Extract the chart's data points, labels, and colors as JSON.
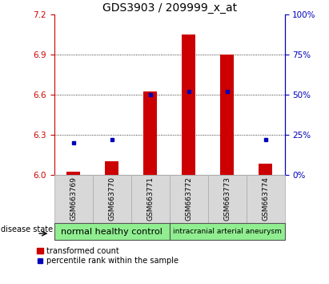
{
  "title": "GDS3903 / 209999_x_at",
  "samples": [
    "GSM663769",
    "GSM663770",
    "GSM663771",
    "GSM663772",
    "GSM663773",
    "GSM663774"
  ],
  "transformed_count": [
    6.02,
    6.1,
    6.62,
    7.05,
    6.9,
    6.08
  ],
  "percentile_rank": [
    20,
    22,
    50,
    52,
    52,
    22
  ],
  "ylim_left": [
    6.0,
    7.2
  ],
  "ylim_right": [
    0,
    100
  ],
  "yticks_left": [
    6.0,
    6.3,
    6.6,
    6.9,
    7.2
  ],
  "yticks_right": [
    0,
    25,
    50,
    75,
    100
  ],
  "bar_color": "#CC0000",
  "point_color": "#0000BB",
  "bar_width": 0.35,
  "sample_box_color": "#d8d8d8",
  "group_color": "#90EE90",
  "plot_bg": "#ffffff",
  "left_axis_color": "#CC0000",
  "right_axis_color": "#0000BB",
  "title_fontsize": 10,
  "tick_fontsize": 7.5,
  "group1_label": "normal healthy control",
  "group2_label": "intracranial arterial aneurysm",
  "group1_fontsize": 8,
  "group2_fontsize": 6.5,
  "legend_label1": "transformed count",
  "legend_label2": "percentile rank within the sample",
  "disease_state_label": "disease state"
}
